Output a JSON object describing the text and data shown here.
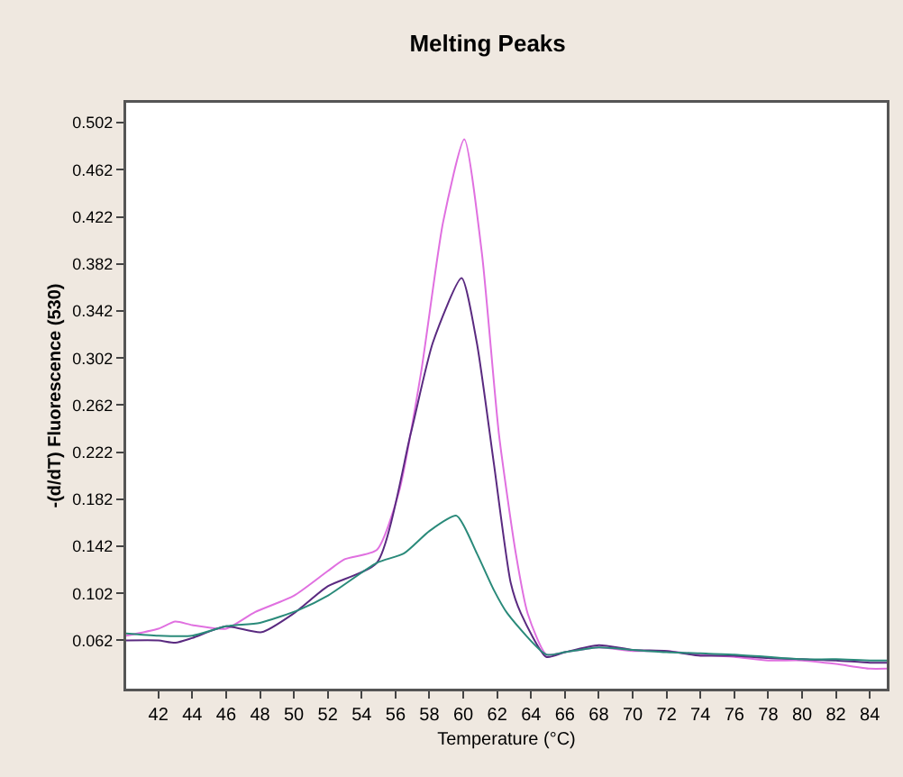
{
  "chart_data": {
    "type": "line",
    "title": "Melting Peaks",
    "xlabel": "Temperature (°C)",
    "ylabel": "-(d/dT) Fluorescence (530)",
    "xlim": [
      40.1,
      85
    ],
    "ylim": [
      0.021,
      0.519
    ],
    "xticks": [
      42,
      44,
      46,
      48,
      50,
      52,
      54,
      56,
      58,
      60,
      62,
      64,
      66,
      68,
      70,
      72,
      74,
      76,
      78,
      80,
      82,
      84
    ],
    "yticks": [
      0.062,
      0.102,
      0.142,
      0.182,
      0.222,
      0.262,
      0.302,
      0.342,
      0.382,
      0.422,
      0.462,
      0.502
    ],
    "grid": false,
    "marker": "none",
    "line_style": "solid",
    "series": [
      {
        "color": "#e070e0",
        "x": [
          40.1,
          42,
          43,
          44,
          46,
          47.7,
          50,
          52,
          53,
          54.9,
          56.2,
          57.5,
          58.8,
          60.06,
          61.1,
          62.1,
          63.1,
          63.8,
          64.9,
          66,
          68,
          70,
          72,
          74,
          76,
          78,
          80,
          82,
          84,
          85
        ],
        "values": [
          0.066,
          0.072,
          0.078,
          0.075,
          0.072,
          0.086,
          0.1,
          0.121,
          0.131,
          0.139,
          0.188,
          0.289,
          0.417,
          0.488,
          0.391,
          0.238,
          0.136,
          0.085,
          0.05,
          0.052,
          0.056,
          0.053,
          0.053,
          0.05,
          0.048,
          0.045,
          0.045,
          0.042,
          0.038,
          0.038
        ]
      },
      {
        "color": "#5a2a80",
        "x": [
          40.1,
          42,
          43,
          44,
          46,
          48.1,
          50,
          52,
          54.9,
          56.9,
          58.2,
          59.9,
          60.8,
          61.8,
          62.8,
          63.4,
          64.9,
          66,
          68,
          70,
          72,
          74,
          76,
          78,
          80,
          82,
          84,
          85
        ],
        "values": [
          0.062,
          0.062,
          0.06,
          0.064,
          0.074,
          0.069,
          0.085,
          0.108,
          0.128,
          0.238,
          0.315,
          0.37,
          0.315,
          0.213,
          0.111,
          0.085,
          0.048,
          0.052,
          0.058,
          0.054,
          0.053,
          0.049,
          0.049,
          0.047,
          0.046,
          0.045,
          0.043,
          0.043
        ]
      },
      {
        "color": "#2a8a7a",
        "x": [
          40.1,
          42,
          44,
          46,
          48,
          50.3,
          52,
          54.9,
          56.5,
          58,
          59.6,
          60.8,
          61.8,
          62.6,
          64.9,
          66,
          68,
          70,
          72,
          74,
          76,
          78,
          80,
          82,
          84,
          85
        ],
        "values": [
          0.068,
          0.066,
          0.066,
          0.074,
          0.077,
          0.088,
          0.1,
          0.128,
          0.136,
          0.155,
          0.168,
          0.136,
          0.105,
          0.085,
          0.05,
          0.052,
          0.056,
          0.054,
          0.052,
          0.051,
          0.05,
          0.048,
          0.046,
          0.046,
          0.045,
          0.045
        ]
      }
    ]
  }
}
